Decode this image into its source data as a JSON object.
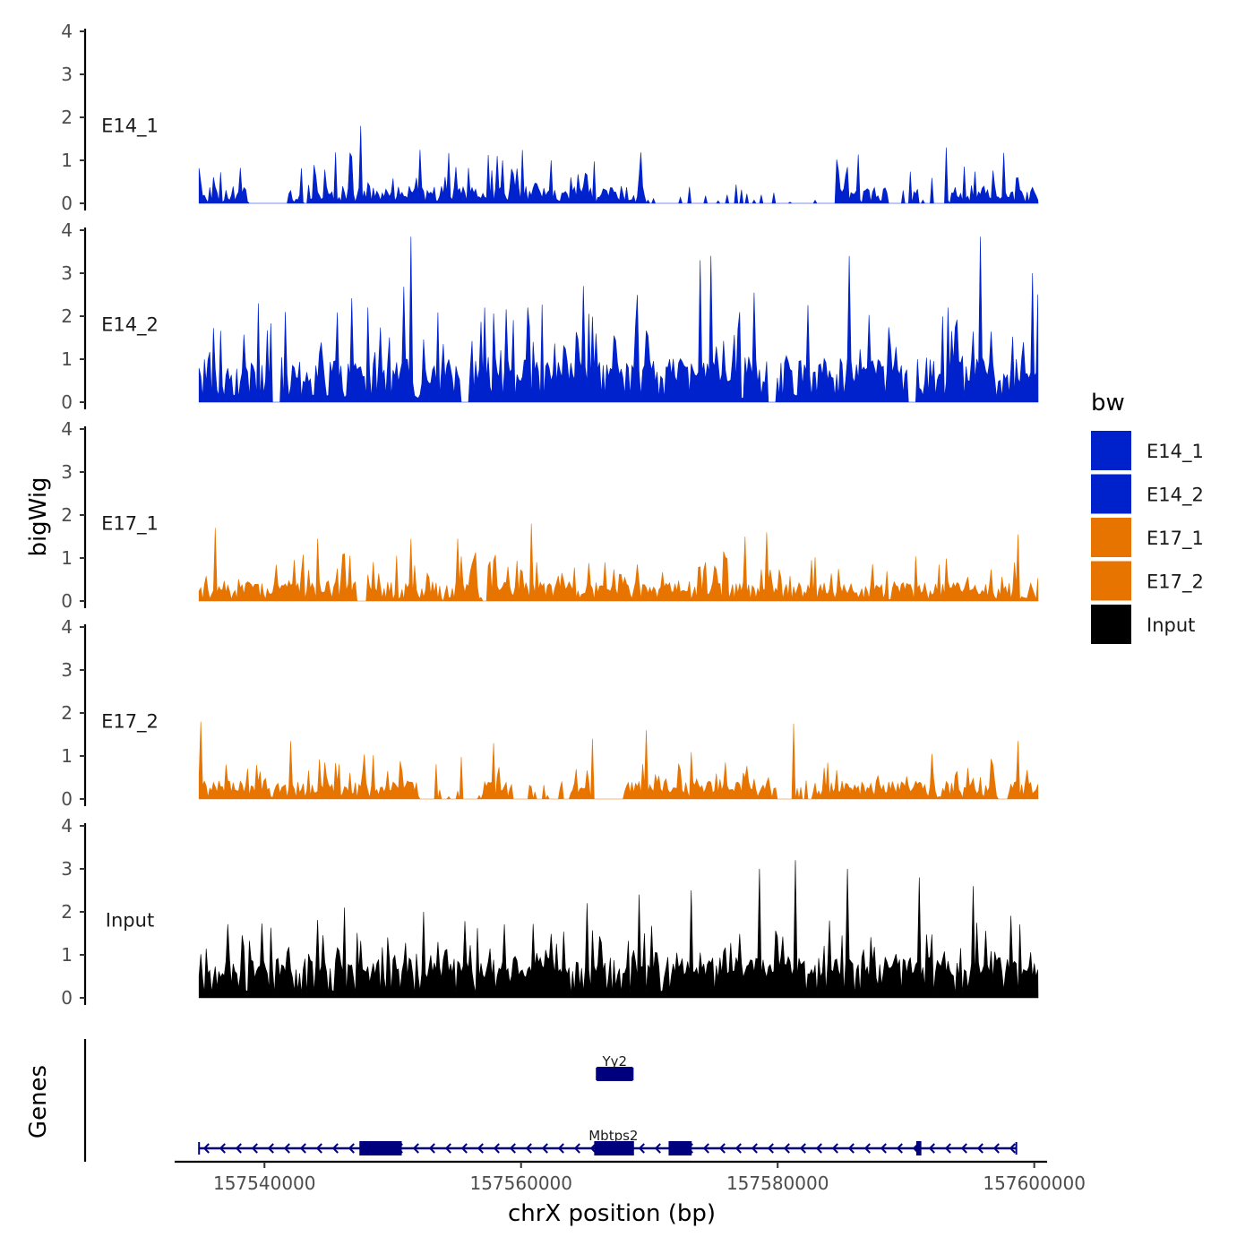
{
  "chart_data": {
    "type": "area",
    "title": "",
    "xlabel": "chrX position (bp)",
    "ylabel": "bigWig",
    "genes_axis_label": "Genes",
    "xlim": [
      157533000,
      157601000
    ],
    "data_range": [
      157534900,
      157600300
    ],
    "x_ticks": [
      157540000,
      157560000,
      157580000,
      157600000
    ],
    "x_tick_labels": [
      "157540000",
      "157560000",
      "157580000",
      "157600000"
    ],
    "ylim": [
      0,
      4
    ],
    "y_ticks": [
      0,
      1,
      2,
      3,
      4
    ],
    "y_tick_labels": [
      "0",
      "1",
      "2",
      "3",
      "4"
    ],
    "grid": false,
    "legend": {
      "title": "bw",
      "position": "right",
      "entries": [
        {
          "label": "E14_1",
          "color": "#0022CC"
        },
        {
          "label": "E14_2",
          "color": "#0022CC"
        },
        {
          "label": "E17_1",
          "color": "#E87400"
        },
        {
          "label": "E17_2",
          "color": "#E87400"
        },
        {
          "label": "Input",
          "color": "#000000"
        }
      ]
    },
    "series": [
      {
        "name": "E14_1",
        "color": "#0022CC",
        "peaks": [
          {
            "x": 157547500,
            "y": 1.8
          },
          {
            "x": 157558200,
            "y": 1.1
          },
          {
            "x": 157562300,
            "y": 1.0
          },
          {
            "x": 157593200,
            "y": 1.3
          }
        ],
        "gaps": [
          [
            157538700,
            157541800
          ],
          [
            157583200,
            157584500
          ]
        ]
      },
      {
        "name": "E14_2",
        "color": "#0022CC",
        "peaks": [
          {
            "x": 157539500,
            "y": 2.3
          },
          {
            "x": 157541600,
            "y": 2.1
          },
          {
            "x": 157548000,
            "y": 2.2
          },
          {
            "x": 157551400,
            "y": 3.85
          },
          {
            "x": 157557200,
            "y": 2.2
          },
          {
            "x": 157564900,
            "y": 2.7
          },
          {
            "x": 157574000,
            "y": 3.3
          },
          {
            "x": 157574800,
            "y": 3.4
          },
          {
            "x": 157585600,
            "y": 3.4
          },
          {
            "x": 157593300,
            "y": 2.2
          },
          {
            "x": 157595800,
            "y": 3.85
          },
          {
            "x": 157599800,
            "y": 3.0
          }
        ],
        "gaps": [
          [
            157540600,
            157541200
          ],
          [
            157555300,
            157555900
          ],
          [
            157579200,
            157579900
          ],
          [
            157590100,
            157590800
          ]
        ]
      },
      {
        "name": "E17_1",
        "color": "#E87400",
        "peaks": [
          {
            "x": 157536200,
            "y": 1.7
          },
          {
            "x": 157544200,
            "y": 1.45
          },
          {
            "x": 157551400,
            "y": 1.45
          },
          {
            "x": 157555000,
            "y": 1.45
          },
          {
            "x": 157560800,
            "y": 1.8
          },
          {
            "x": 157577400,
            "y": 1.5
          },
          {
            "x": 157579100,
            "y": 1.6
          },
          {
            "x": 157598800,
            "y": 1.55
          }
        ],
        "gaps": [
          [
            157547200,
            157548000
          ],
          [
            157556900,
            157557400
          ]
        ]
      },
      {
        "name": "E17_2",
        "color": "#E87400",
        "peaks": [
          {
            "x": 157535100,
            "y": 1.8
          },
          {
            "x": 157542000,
            "y": 1.35
          },
          {
            "x": 157557800,
            "y": 1.3
          },
          {
            "x": 157565500,
            "y": 1.4
          },
          {
            "x": 157569700,
            "y": 1.6
          },
          {
            "x": 157581300,
            "y": 1.75
          },
          {
            "x": 157598800,
            "y": 1.35
          }
        ],
        "gaps": [
          [
            157556000,
            157556300
          ],
          [
            157563300,
            157563800
          ],
          [
            157565900,
            157568000
          ],
          [
            157597100,
            157598000
          ]
        ]
      },
      {
        "name": "Input",
        "color": "#000000",
        "peaks": [
          {
            "x": 157546200,
            "y": 2.1
          },
          {
            "x": 157552400,
            "y": 2.0
          },
          {
            "x": 157565100,
            "y": 2.2
          },
          {
            "x": 157569200,
            "y": 2.4
          },
          {
            "x": 157573300,
            "y": 2.5
          },
          {
            "x": 157578600,
            "y": 3.0
          },
          {
            "x": 157581400,
            "y": 3.2
          },
          {
            "x": 157585400,
            "y": 3.0
          },
          {
            "x": 157591100,
            "y": 2.8
          },
          {
            "x": 157595200,
            "y": 2.6
          }
        ],
        "gaps": []
      }
    ],
    "genes": [
      {
        "name": "Yy2",
        "start": 157565900,
        "end": 157568700,
        "strand": "-",
        "row": 1,
        "exons": [
          [
            157565900,
            157568700
          ]
        ]
      },
      {
        "name": "Mbtps2",
        "start": 157534900,
        "end": 157598600,
        "strand": "-",
        "row": 2,
        "exons": [
          [
            157547400,
            157550700
          ],
          [
            157565700,
            157568800
          ],
          [
            157571500,
            157573300
          ],
          [
            157590800,
            157591200
          ]
        ]
      }
    ]
  }
}
